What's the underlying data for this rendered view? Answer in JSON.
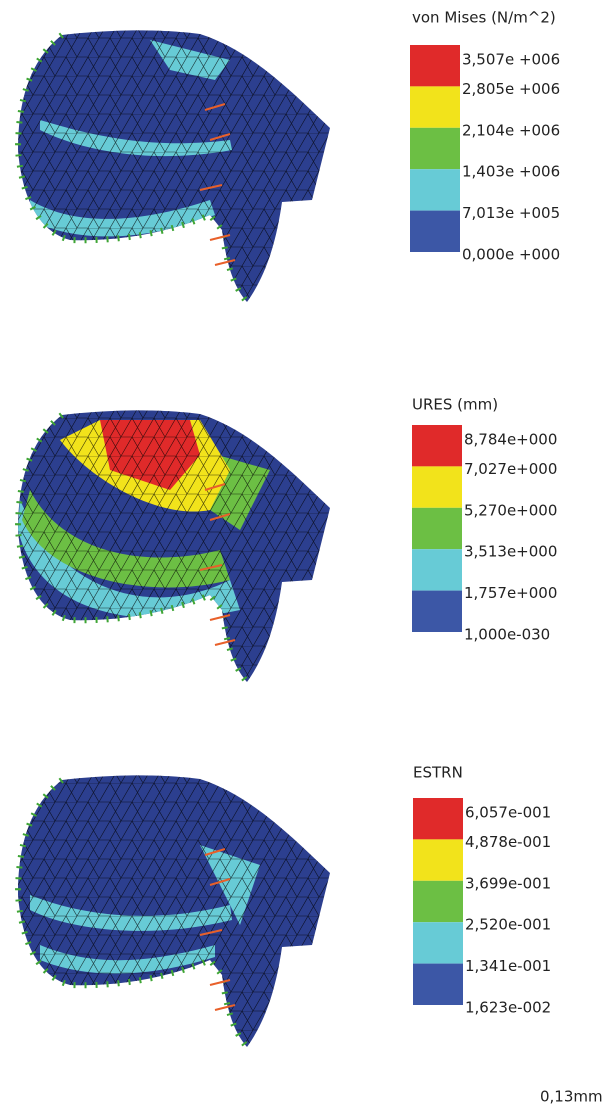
{
  "panels": [
    {
      "legend_title": "von Mises (N/m^2)",
      "labels": [
        "3,507e +006",
        "2,805e +006",
        "2,104e +006",
        "1,403e +006",
        "7,013e +005",
        "0,000e +000"
      ]
    },
    {
      "legend_title": "URES (mm)",
      "labels": [
        "8,784e+000",
        "7,027e+000",
        "5,270e+000",
        "3,513e+000",
        "1,757e+000",
        "1,000e-030"
      ]
    },
    {
      "legend_title": "ESTRN",
      "labels": [
        "6,057e-001",
        "4,878e-001",
        "3,699e-001",
        "2,520e-001",
        "1,341e-001",
        "1,623e-002"
      ]
    }
  ],
  "footer": "0,13mm"
}
